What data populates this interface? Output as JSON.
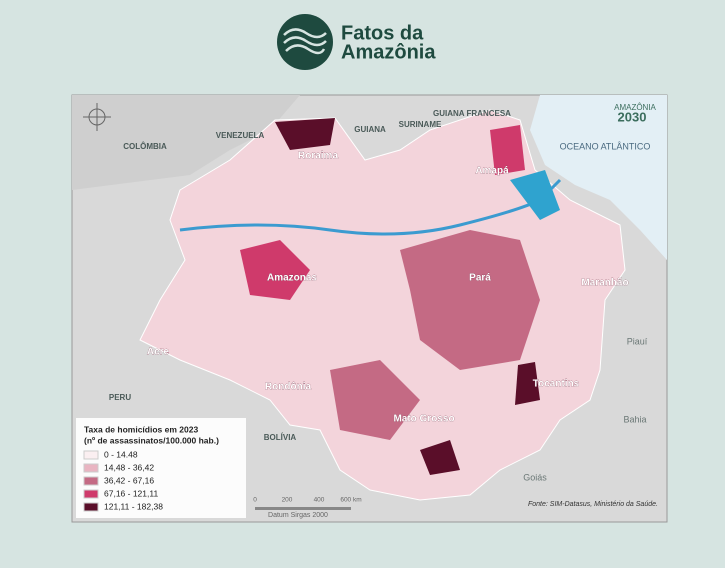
{
  "header": {
    "logo_line1": "Fatos da",
    "logo_line2": "Amazônia"
  },
  "map": {
    "corner_logo": {
      "line1": "AMAZÔNIA",
      "line2": "2030"
    },
    "countries": [
      "COLÔMBIA",
      "VENEZUELA",
      "GUIANA",
      "SURINAME",
      "GUIANA FRANCESA",
      "PERU",
      "BOLÍVIA"
    ],
    "ocean": "OCEANO ATLÂNTICO",
    "neighbor_states": [
      "Piauí",
      "Bahia",
      "Goiás"
    ],
    "states": [
      "Roraima",
      "Amapá",
      "Amazonas",
      "Pará",
      "Maranhão",
      "Acre",
      "Rondônia",
      "Tocantins",
      "Mato Grosso"
    ],
    "legend": {
      "title": "Taxa de homicídios em 2023",
      "subtitle": "(nº de assassinatos/100.000 hab.)",
      "items": [
        {
          "label": "0 - 14.48",
          "color": "#fbeff1"
        },
        {
          "label": "14,48 - 36,42",
          "color": "#e9b5c2"
        },
        {
          "label": "36,42 - 67,16",
          "color": "#c46a84"
        },
        {
          "label": "67,16 - 121,11",
          "color": "#cf3a6b"
        },
        {
          "label": "121,11 - 182,38",
          "color": "#5a0e29"
        }
      ]
    },
    "scale_bar": {
      "labels": [
        "0",
        "200",
        "400",
        "600 km"
      ],
      "datum": "Datum Sirgas 2000"
    },
    "source": "Fonte: SIM-Datasus, Ministério da Saúde."
  }
}
